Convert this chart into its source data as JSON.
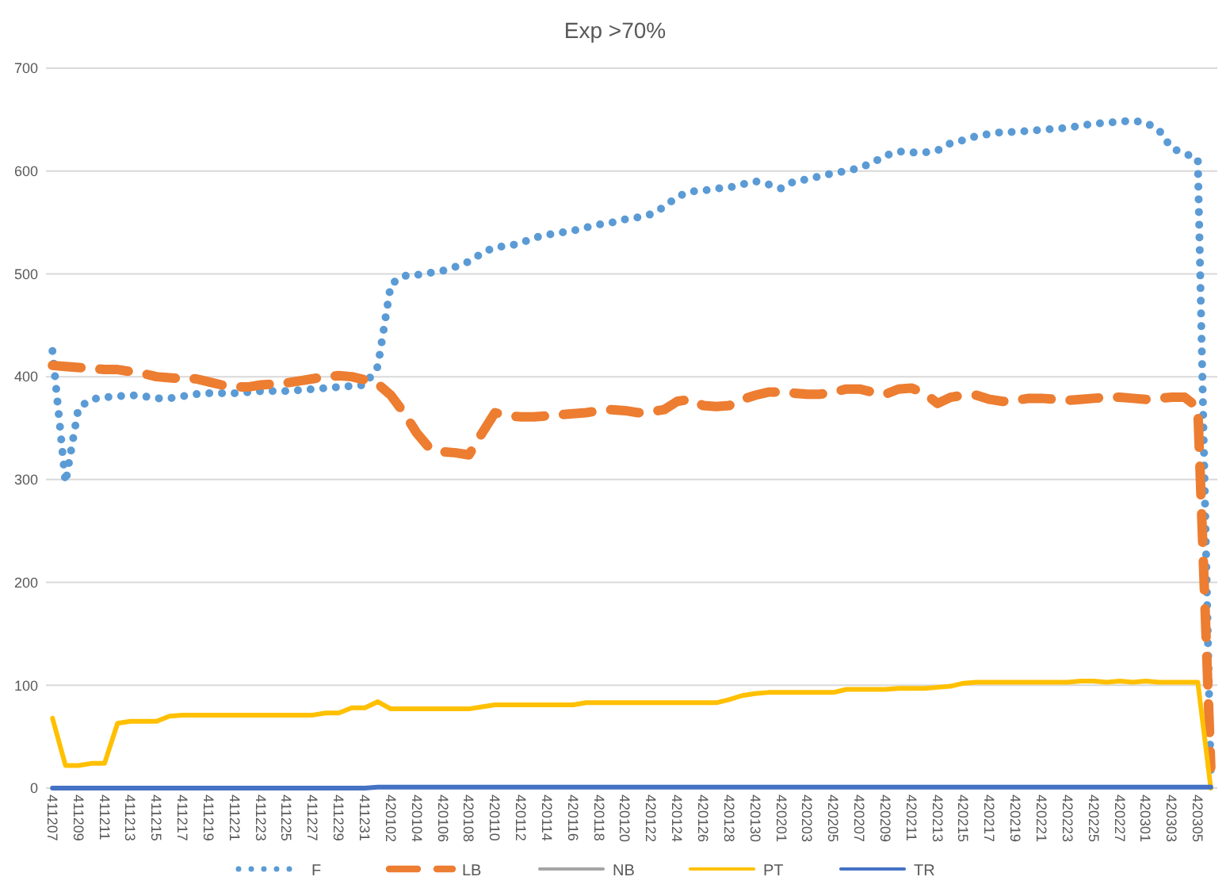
{
  "chart_data": {
    "type": "line",
    "title": "Exp >70%",
    "categories": [
      "411207",
      null,
      "411209",
      null,
      "411211",
      null,
      "411213",
      null,
      "411215",
      null,
      "411217",
      null,
      "411219",
      null,
      "411221",
      null,
      "411223",
      null,
      "411225",
      null,
      "411227",
      null,
      "411229",
      null,
      "411231",
      null,
      "420102",
      null,
      "420104",
      null,
      "420106",
      null,
      "420108",
      null,
      "420110",
      null,
      "420112",
      null,
      "420114",
      null,
      "420116",
      null,
      "420118",
      null,
      "420120",
      null,
      "420122",
      null,
      "420124",
      null,
      "420126",
      null,
      "420128",
      null,
      "420130",
      null,
      "420201",
      null,
      "420203",
      null,
      "420205",
      null,
      "420207",
      null,
      "420209",
      null,
      "420211",
      null,
      "420213",
      null,
      "420215",
      null,
      "420217",
      null,
      "420219",
      null,
      "420221",
      null,
      "420223",
      null,
      "420225",
      null,
      "420227",
      null,
      "420301",
      null,
      "420303",
      null,
      "420305",
      null
    ],
    "series": [
      {
        "name": "F",
        "color": "#5b9bd5",
        "line_style": "dotted",
        "values": [
          425,
          297,
          370,
          378,
          380,
          381,
          382,
          381,
          379,
          379,
          381,
          383,
          384,
          384,
          384,
          385,
          386,
          386,
          386,
          387,
          388,
          389,
          390,
          391,
          392,
          410,
          490,
          498,
          499,
          501,
          503,
          507,
          512,
          520,
          526,
          527,
          530,
          535,
          538,
          540,
          542,
          545,
          548,
          550,
          553,
          555,
          558,
          565,
          575,
          580,
          581,
          583,
          584,
          587,
          590,
          587,
          583,
          590,
          592,
          595,
          598,
          600,
          603,
          608,
          615,
          619,
          618,
          618,
          620,
          627,
          630,
          634,
          636,
          638,
          638,
          639,
          640,
          641,
          642,
          644,
          646,
          647,
          648,
          649,
          647,
          640,
          622,
          617,
          612,
          10
        ]
      },
      {
        "name": "LB",
        "color": "#ed7d31",
        "line_style": "dashed",
        "values": [
          411,
          410,
          409,
          408,
          407,
          407,
          405,
          403,
          400,
          399,
          398,
          398,
          395,
          392,
          390,
          390,
          392,
          393,
          394,
          396,
          398,
          400,
          401,
          400,
          397,
          393,
          382,
          365,
          345,
          330,
          327,
          326,
          324,
          345,
          365,
          362,
          361,
          361,
          362,
          363,
          364,
          365,
          367,
          368,
          367,
          365,
          366,
          368,
          376,
          378,
          372,
          371,
          372,
          378,
          382,
          385,
          385,
          384,
          383,
          383,
          385,
          388,
          388,
          385,
          383,
          388,
          389,
          384,
          374,
          380,
          382,
          382,
          378,
          376,
          377,
          379,
          379,
          378,
          377,
          378,
          379,
          380,
          380,
          379,
          378,
          379,
          380,
          380,
          370,
          20
        ]
      },
      {
        "name": "NB",
        "color": "#a5a5a5",
        "line_style": "solid",
        "values": [
          null,
          null,
          null,
          null,
          null,
          null,
          null,
          null,
          null,
          null,
          null,
          null,
          null,
          null,
          null,
          null,
          null,
          null,
          null,
          null,
          null,
          null,
          null,
          null,
          null,
          null,
          null,
          null,
          null,
          null,
          null,
          null,
          null,
          null,
          null,
          null,
          null,
          null,
          null,
          null,
          null,
          null,
          null,
          null,
          null,
          null,
          null,
          null,
          null,
          null,
          null,
          null,
          null,
          null,
          null,
          null,
          null,
          null,
          null,
          null,
          null,
          null,
          null,
          null,
          null,
          null,
          null,
          null,
          null,
          null,
          null,
          null,
          null,
          null,
          null,
          null,
          null,
          null,
          null,
          null,
          null,
          null,
          null,
          null,
          null,
          null,
          null,
          null,
          null,
          null
        ]
      },
      {
        "name": "PT",
        "color": "#ffc000",
        "line_style": "solid",
        "values": [
          68,
          22,
          22,
          24,
          24,
          63,
          65,
          65,
          65,
          70,
          71,
          71,
          71,
          71,
          71,
          71,
          71,
          71,
          71,
          71,
          71,
          73,
          73,
          78,
          78,
          84,
          77,
          77,
          77,
          77,
          77,
          77,
          77,
          79,
          81,
          81,
          81,
          81,
          81,
          81,
          81,
          83,
          83,
          83,
          83,
          83,
          83,
          83,
          83,
          83,
          83,
          83,
          86,
          90,
          92,
          93,
          93,
          93,
          93,
          93,
          93,
          96,
          96,
          96,
          96,
          97,
          97,
          97,
          98,
          99,
          102,
          103,
          103,
          103,
          103,
          103,
          103,
          103,
          103,
          104,
          104,
          103,
          104,
          103,
          104,
          103,
          103,
          103,
          103,
          0
        ]
      },
      {
        "name": "TR",
        "color": "#4472c4",
        "line_style": "solid",
        "values": [
          0,
          0,
          0,
          0,
          0,
          0,
          0,
          0,
          0,
          0,
          0,
          0,
          0,
          0,
          0,
          0,
          0,
          0,
          0,
          0,
          0,
          0,
          0,
          0,
          0,
          1,
          1,
          1,
          1,
          1,
          1,
          1,
          1,
          1,
          1,
          1,
          1,
          1,
          1,
          1,
          1,
          1,
          1,
          1,
          1,
          1,
          1,
          1,
          1,
          1,
          1,
          1,
          1,
          1,
          1,
          1,
          1,
          1,
          1,
          1,
          1,
          1,
          1,
          1,
          1,
          1,
          1,
          1,
          1,
          1,
          1,
          1,
          1,
          1,
          1,
          1,
          1,
          1,
          1,
          1,
          1,
          1,
          1,
          1,
          1,
          1,
          1,
          1,
          1,
          1
        ]
      }
    ],
    "ylim": [
      0,
      700
    ],
    "yticks": [
      0,
      100,
      200,
      300,
      400,
      500,
      600,
      700
    ],
    "grid": "y",
    "legend": "bottom",
    "marker": "none"
  }
}
